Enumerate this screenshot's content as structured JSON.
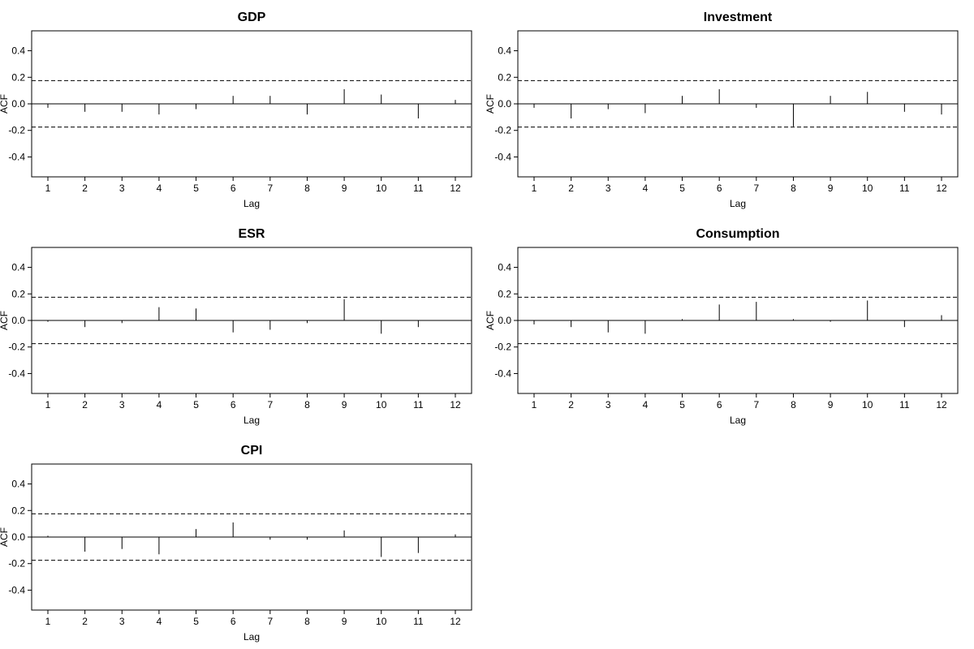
{
  "chart_data": [
    {
      "type": "bar",
      "title": "GDP",
      "xlabel": "Lag",
      "ylabel": "ACF",
      "ylim": [
        -0.55,
        0.55
      ],
      "yticks": [
        "0.4",
        "0.2",
        "0.0",
        "-0.2",
        "-0.4"
      ],
      "ytick_values": [
        0.4,
        0.2,
        0.0,
        -0.2,
        -0.4
      ],
      "categories": [
        "1",
        "2",
        "3",
        "4",
        "5",
        "6",
        "7",
        "8",
        "9",
        "10",
        "11",
        "12"
      ],
      "values": [
        -0.03,
        -0.06,
        -0.06,
        -0.08,
        -0.04,
        0.06,
        0.06,
        -0.08,
        0.11,
        0.07,
        -0.11,
        0.03
      ],
      "confidence_bounds": [
        0.175,
        -0.175
      ],
      "grid": false
    },
    {
      "type": "bar",
      "title": "Investment",
      "xlabel": "Lag",
      "ylabel": "ACF",
      "ylim": [
        -0.55,
        0.55
      ],
      "yticks": [
        "0.4",
        "0.2",
        "0.0",
        "-0.2",
        "-0.4"
      ],
      "ytick_values": [
        0.4,
        0.2,
        0.0,
        -0.2,
        -0.4
      ],
      "categories": [
        "1",
        "2",
        "3",
        "4",
        "5",
        "6",
        "7",
        "8",
        "9",
        "10",
        "11",
        "12"
      ],
      "values": [
        -0.03,
        -0.11,
        -0.04,
        -0.07,
        0.06,
        0.11,
        -0.03,
        -0.17,
        0.06,
        0.09,
        -0.06,
        -0.08
      ],
      "confidence_bounds": [
        0.175,
        -0.175
      ],
      "grid": false
    },
    {
      "type": "bar",
      "title": "ESR",
      "xlabel": "Lag",
      "ylabel": "ACF",
      "ylim": [
        -0.55,
        0.55
      ],
      "yticks": [
        "0.4",
        "0.2",
        "0.0",
        "-0.2",
        "-0.4"
      ],
      "ytick_values": [
        0.4,
        0.2,
        0.0,
        -0.2,
        -0.4
      ],
      "categories": [
        "1",
        "2",
        "3",
        "4",
        "5",
        "6",
        "7",
        "8",
        "9",
        "10",
        "11",
        "12"
      ],
      "values": [
        -0.01,
        -0.05,
        -0.02,
        0.1,
        0.09,
        -0.09,
        -0.07,
        -0.02,
        0.16,
        -0.1,
        -0.05,
        0.0
      ],
      "confidence_bounds": [
        0.175,
        -0.175
      ],
      "grid": false
    },
    {
      "type": "bar",
      "title": "Consumption",
      "xlabel": "Lag",
      "ylabel": "ACF",
      "ylim": [
        -0.55,
        0.55
      ],
      "yticks": [
        "0.4",
        "0.2",
        "0.0",
        "-0.2",
        "-0.4"
      ],
      "ytick_values": [
        0.4,
        0.2,
        0.0,
        -0.2,
        -0.4
      ],
      "categories": [
        "1",
        "2",
        "3",
        "4",
        "5",
        "6",
        "7",
        "8",
        "9",
        "10",
        "11",
        "12"
      ],
      "values": [
        -0.03,
        -0.05,
        -0.09,
        -0.1,
        0.01,
        0.12,
        0.14,
        0.01,
        -0.01,
        0.15,
        -0.05,
        0.04
      ],
      "confidence_bounds": [
        0.175,
        -0.175
      ],
      "grid": false
    },
    {
      "type": "bar",
      "title": "CPI",
      "xlabel": "Lag",
      "ylabel": "ACF",
      "ylim": [
        -0.55,
        0.55
      ],
      "yticks": [
        "0.4",
        "0.2",
        "0.0",
        "-0.2",
        "-0.4"
      ],
      "ytick_values": [
        0.4,
        0.2,
        0.0,
        -0.2,
        -0.4
      ],
      "categories": [
        "1",
        "2",
        "3",
        "4",
        "5",
        "6",
        "7",
        "8",
        "9",
        "10",
        "11",
        "12"
      ],
      "values": [
        0.01,
        -0.11,
        -0.09,
        -0.13,
        0.06,
        0.11,
        -0.02,
        -0.02,
        0.05,
        -0.15,
        -0.12,
        0.02
      ],
      "confidence_bounds": [
        0.175,
        -0.175
      ],
      "grid": false
    }
  ]
}
